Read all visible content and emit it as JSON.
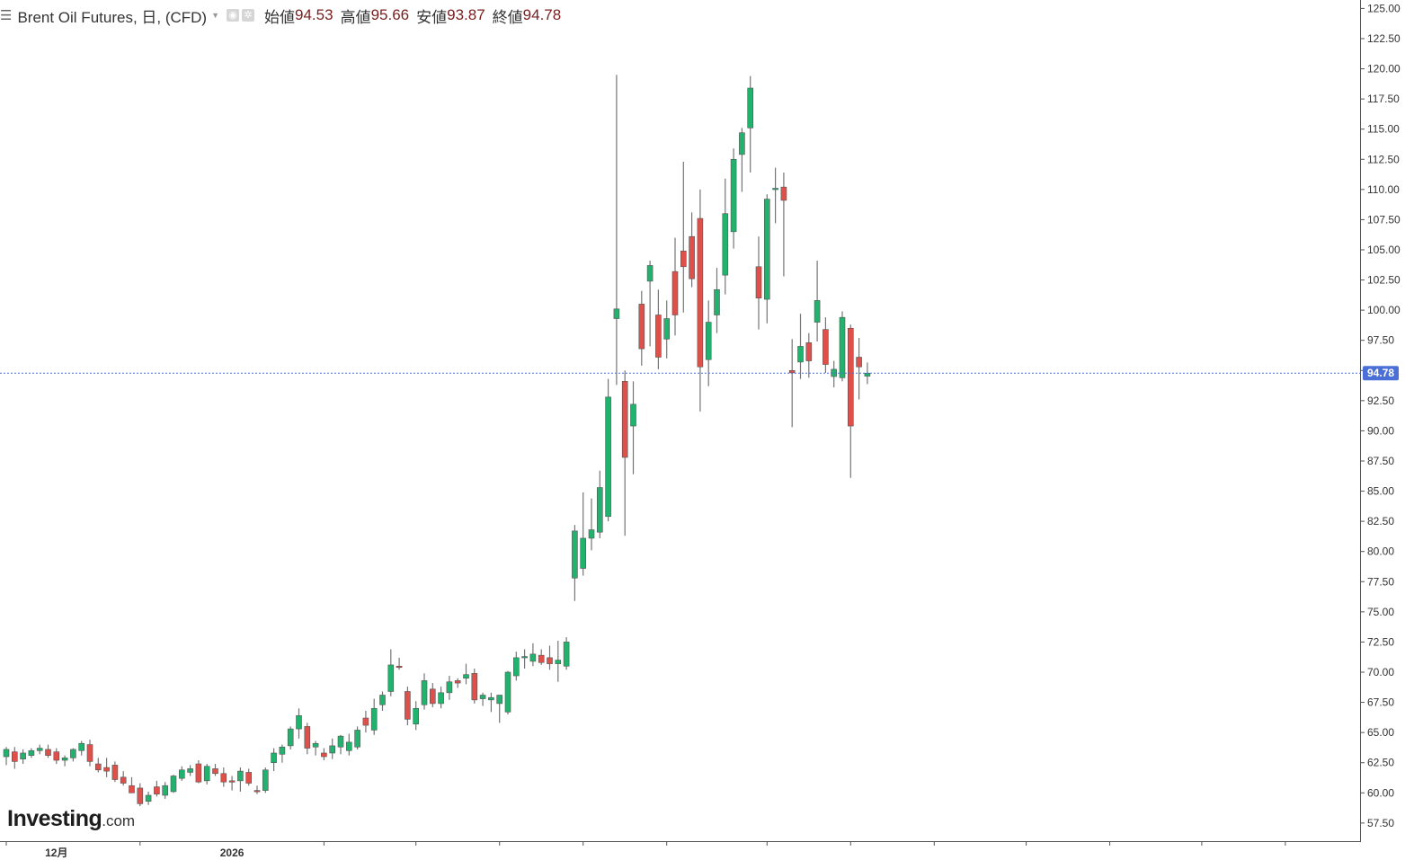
{
  "header": {
    "instrument": "Brent Oil Futures, 日, (CFD)",
    "open_label": "始値",
    "open_value": "94.53",
    "high_label": "高値",
    "high_value": "95.66",
    "low_label": "安値",
    "low_value": "93.87",
    "close_label": "終値",
    "close_value": "94.78"
  },
  "logo": {
    "main": "Investing",
    "suffix": ".com"
  },
  "colors": {
    "up": "#21b36e",
    "down": "#e0504a",
    "wick": "#757575",
    "price_line": "#4a6fd6",
    "axis": "#555555"
  },
  "chart_data": {
    "type": "candlestick",
    "title": "Brent Oil Futures, 日, (CFD)",
    "ylim": [
      56,
      125.7
    ],
    "y_ticks": [
      "125.00",
      "122.50",
      "120.00",
      "117.50",
      "115.00",
      "112.50",
      "110.00",
      "107.50",
      "105.00",
      "102.50",
      "100.00",
      "97.50",
      "95.00",
      "92.50",
      "90.00",
      "87.50",
      "85.00",
      "82.50",
      "80.00",
      "77.50",
      "75.00",
      "72.50",
      "70.00",
      "67.50",
      "65.00",
      "62.50",
      "60.00",
      "57.50"
    ],
    "x_labels": [
      {
        "text": "12月",
        "index": 6
      },
      {
        "text": "2026",
        "index": 27
      }
    ],
    "x_ticks": [
      0,
      16,
      38,
      49,
      59,
      69,
      79,
      91,
      101,
      111,
      122,
      132,
      143,
      153
    ],
    "last_price": "94.78",
    "candles": [
      [
        63.0,
        63.8,
        62.3,
        63.6
      ],
      [
        63.4,
        63.8,
        62.0,
        62.6
      ],
      [
        62.8,
        63.6,
        62.4,
        63.3
      ],
      [
        63.1,
        63.7,
        62.9,
        63.5
      ],
      [
        63.5,
        64.0,
        63.2,
        63.7
      ],
      [
        63.6,
        64.0,
        62.9,
        63.1
      ],
      [
        63.4,
        63.7,
        62.4,
        62.7
      ],
      [
        62.7,
        63.1,
        62.2,
        62.9
      ],
      [
        62.9,
        63.7,
        62.6,
        63.6
      ],
      [
        63.5,
        64.3,
        63.1,
        64.1
      ],
      [
        64.0,
        64.4,
        62.2,
        62.6
      ],
      [
        62.4,
        62.9,
        61.7,
        61.9
      ],
      [
        62.1,
        62.9,
        61.3,
        61.8
      ],
      [
        62.3,
        62.6,
        60.9,
        61.1
      ],
      [
        61.3,
        61.8,
        60.6,
        60.8
      ],
      [
        60.6,
        61.3,
        60.2,
        60.0
      ],
      [
        60.4,
        60.8,
        58.9,
        59.1
      ],
      [
        59.3,
        60.1,
        59.0,
        59.8
      ],
      [
        60.5,
        61.0,
        59.7,
        59.9
      ],
      [
        59.8,
        60.9,
        59.5,
        60.6
      ],
      [
        60.1,
        61.5,
        60.0,
        61.4
      ],
      [
        61.2,
        62.2,
        61.0,
        61.9
      ],
      [
        61.7,
        62.3,
        61.4,
        62.0
      ],
      [
        62.4,
        62.7,
        60.8,
        60.9
      ],
      [
        61.0,
        62.4,
        60.7,
        62.2
      ],
      [
        62.0,
        62.4,
        61.4,
        61.6
      ],
      [
        61.6,
        62.1,
        60.5,
        60.9
      ],
      [
        61.0,
        61.4,
        60.2,
        60.9
      ],
      [
        61.0,
        62.1,
        60.1,
        61.8
      ],
      [
        61.7,
        62.0,
        60.6,
        60.8
      ],
      [
        60.2,
        60.6,
        59.9,
        60.1
      ],
      [
        60.2,
        62.1,
        60.0,
        61.9
      ],
      [
        62.5,
        63.7,
        61.8,
        63.3
      ],
      [
        63.2,
        64.0,
        62.5,
        63.8
      ],
      [
        63.9,
        65.5,
        63.6,
        65.3
      ],
      [
        65.3,
        67.0,
        64.5,
        66.4
      ],
      [
        65.5,
        65.8,
        63.2,
        63.7
      ],
      [
        63.8,
        64.3,
        63.1,
        64.1
      ],
      [
        63.3,
        63.7,
        62.7,
        63.0
      ],
      [
        63.3,
        64.5,
        62.8,
        63.9
      ],
      [
        63.8,
        64.8,
        63.2,
        64.7
      ],
      [
        63.5,
        64.9,
        63.1,
        64.2
      ],
      [
        63.8,
        65.5,
        63.6,
        65.2
      ],
      [
        66.2,
        66.8,
        65.0,
        65.6
      ],
      [
        65.2,
        67.8,
        64.8,
        67.0
      ],
      [
        67.3,
        68.4,
        66.8,
        68.1
      ],
      [
        68.4,
        71.9,
        68.0,
        70.6
      ],
      [
        70.5,
        71.2,
        70.2,
        70.4
      ],
      [
        68.4,
        68.8,
        65.6,
        66.1
      ],
      [
        65.7,
        67.6,
        65.2,
        67.0
      ],
      [
        67.3,
        69.9,
        66.9,
        69.3
      ],
      [
        68.6,
        69.1,
        67.1,
        67.4
      ],
      [
        67.4,
        68.8,
        67.0,
        68.3
      ],
      [
        68.3,
        69.7,
        67.7,
        69.2
      ],
      [
        69.3,
        69.5,
        68.7,
        69.1
      ],
      [
        69.5,
        70.7,
        69.0,
        69.8
      ],
      [
        69.9,
        70.3,
        67.4,
        67.7
      ],
      [
        67.8,
        68.3,
        67.2,
        68.1
      ],
      [
        67.7,
        68.3,
        66.7,
        67.9
      ],
      [
        67.4,
        67.8,
        65.8,
        68.1
      ],
      [
        66.7,
        70.1,
        66.5,
        70.0
      ],
      [
        69.7,
        71.7,
        69.3,
        71.2
      ],
      [
        71.2,
        71.9,
        70.3,
        71.3
      ],
      [
        70.9,
        72.4,
        70.5,
        71.5
      ],
      [
        71.4,
        71.9,
        70.6,
        70.8
      ],
      [
        71.2,
        72.2,
        70.2,
        70.7
      ],
      [
        70.7,
        72.6,
        69.2,
        71.0
      ],
      [
        70.5,
        72.9,
        70.2,
        72.5
      ],
      [
        77.8,
        82.2,
        75.9,
        81.7
      ],
      [
        78.6,
        84.9,
        78.0,
        81.1
      ],
      [
        81.1,
        84.4,
        80.1,
        81.8
      ],
      [
        81.6,
        86.7,
        81.1,
        85.3
      ],
      [
        82.9,
        94.3,
        82.5,
        92.8
      ],
      [
        99.3,
        119.5,
        93.8,
        100.1
      ],
      [
        94.1,
        95.0,
        81.3,
        87.8
      ],
      [
        90.4,
        94.1,
        86.4,
        92.2
      ],
      [
        100.5,
        101.6,
        95.4,
        96.8
      ],
      [
        102.4,
        104.1,
        97.0,
        103.7
      ],
      [
        99.6,
        101.7,
        95.1,
        96.1
      ],
      [
        97.6,
        100.8,
        96.0,
        99.3
      ],
      [
        103.2,
        106.0,
        97.9,
        99.6
      ],
      [
        104.9,
        112.3,
        99.8,
        103.6
      ],
      [
        106.1,
        108.1,
        101.9,
        102.6
      ],
      [
        107.6,
        110.0,
        91.6,
        95.3
      ],
      [
        95.9,
        100.8,
        93.7,
        99.0
      ],
      [
        99.6,
        103.5,
        98.1,
        101.7
      ],
      [
        102.9,
        110.9,
        101.3,
        108.0
      ],
      [
        106.5,
        113.4,
        105.1,
        112.5
      ],
      [
        112.9,
        115.1,
        109.8,
        114.7
      ],
      [
        115.1,
        119.4,
        111.4,
        118.4
      ],
      [
        103.6,
        106.1,
        98.4,
        101.0
      ],
      [
        100.9,
        109.6,
        98.9,
        109.2
      ],
      [
        110.0,
        111.8,
        107.2,
        110.1
      ],
      [
        110.2,
        111.4,
        102.8,
        109.1
      ],
      [
        95.0,
        97.6,
        90.3,
        94.8
      ],
      [
        95.7,
        99.7,
        94.3,
        97.0
      ],
      [
        97.3,
        98.1,
        94.4,
        95.8
      ],
      [
        99.0,
        104.1,
        97.4,
        100.8
      ],
      [
        98.4,
        99.4,
        94.8,
        95.5
      ],
      [
        94.5,
        95.8,
        93.6,
        95.1
      ],
      [
        94.4,
        99.9,
        94.1,
        99.4
      ],
      [
        98.5,
        98.8,
        86.1,
        90.4
      ],
      [
        96.1,
        97.7,
        92.6,
        95.3
      ],
      [
        94.53,
        95.66,
        93.87,
        94.78
      ]
    ]
  }
}
